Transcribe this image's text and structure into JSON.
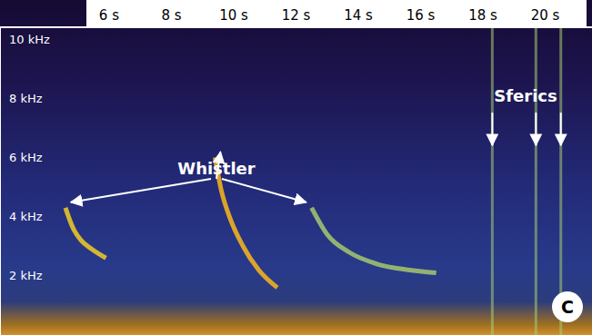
{
  "chart_data": {
    "type": "line",
    "xlim": [
      2.5,
      21.5
    ],
    "xticks": [
      {
        "value": 6,
        "label": "6 s"
      },
      {
        "value": 8,
        "label": "8 s"
      },
      {
        "value": 10,
        "label": "10 s"
      },
      {
        "value": 12,
        "label": "12 s"
      },
      {
        "value": 14,
        "label": "14 s"
      },
      {
        "value": 16,
        "label": "16 s"
      },
      {
        "value": 18,
        "label": "18 s"
      },
      {
        "value": 20,
        "label": "20 s"
      }
    ],
    "ylim": [
      0,
      10.4
    ],
    "yticks": [
      {
        "value": 2,
        "label": "2 kHz"
      },
      {
        "value": 4,
        "label": "4 kHz"
      },
      {
        "value": 6,
        "label": "6 kHz"
      },
      {
        "value": 8,
        "label": "8 kHz"
      },
      {
        "value": 10,
        "label": "10 kHz"
      }
    ],
    "grid": false,
    "series": [
      {
        "color": "#e8c428",
        "x": [
          4.6,
          4.85,
          5.1,
          5.45,
          5.9
        ],
        "values": [
          4.3,
          3.6,
          3.2,
          2.9,
          2.6
        ]
      },
      {
        "color": "#f0b020",
        "x": [
          9.4,
          9.6,
          9.9,
          10.3,
          10.8,
          11.4
        ],
        "values": [
          6.0,
          4.9,
          3.9,
          3.0,
          2.2,
          1.6
        ]
      },
      {
        "color": "#9fc070",
        "x": [
          12.5,
          13.0,
          13.7,
          14.6,
          15.6,
          16.5
        ],
        "values": [
          4.3,
          3.4,
          2.8,
          2.4,
          2.2,
          2.1
        ]
      }
    ],
    "annotations": [
      {
        "text": "Whistler"
      },
      {
        "text": "Sferics",
        "x": [
          18.3,
          19.7,
          20.5
        ]
      }
    ],
    "panel_label": "C"
  }
}
